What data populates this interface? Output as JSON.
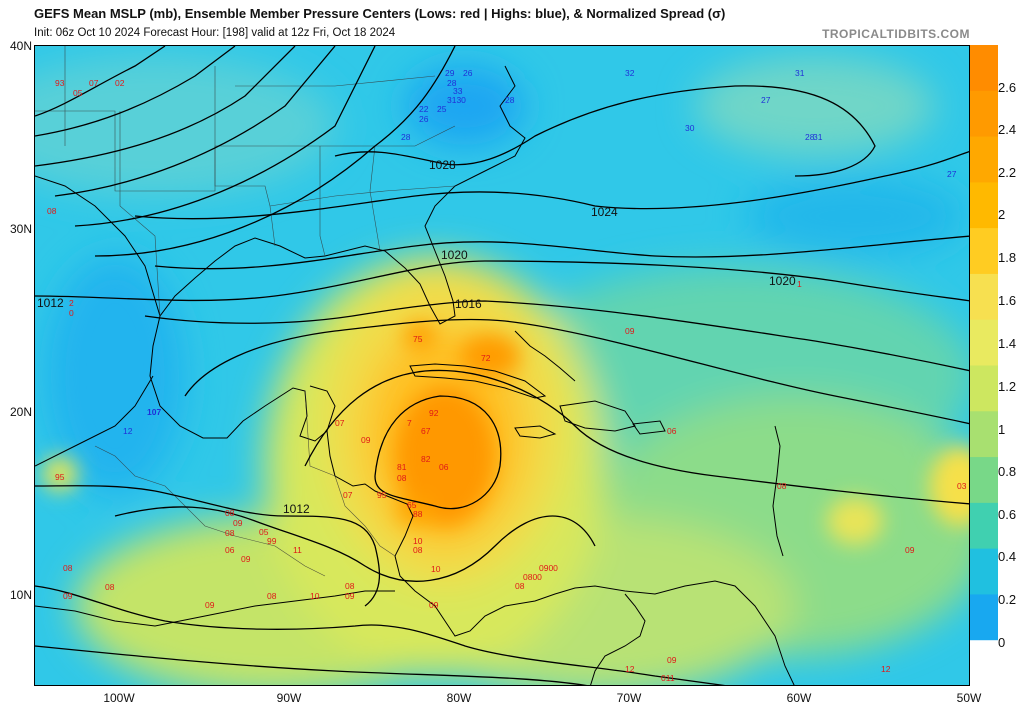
{
  "title": "GEFS Mean MSLP (mb), Ensemble Member Pressure Centers (Lows: red | Highs: blue), & Normalized Spread (σ)",
  "subtitle": "Init: 06z Oct 10 2024   Forecast Hour: [198]   valid at 12z Fri, Oct 18 2024",
  "brand": "TROPICALTIDBITS.COM",
  "lat_labels": [
    "40N",
    "30N",
    "20N",
    "10N"
  ],
  "lon_labels": [
    "100W",
    "90W",
    "80W",
    "70W",
    "60W",
    "50W"
  ],
  "isobar_labels": [
    "1028",
    "1024",
    "1020",
    "1020",
    "1016",
    "1012",
    "1012"
  ],
  "colorbar": {
    "labels": [
      "2.6",
      "2.4",
      "2.2",
      "2",
      "1.8",
      "1.6",
      "1.4",
      "1.2",
      "1",
      "0.8",
      "0.6",
      "0.4",
      "0.2",
      "0"
    ],
    "colors": [
      "#ff8c00",
      "#ff9a00",
      "#ffa800",
      "#ffb900",
      "#ffcc22",
      "#f7e050",
      "#e9ea60",
      "#cde760",
      "#a8e070",
      "#78d888",
      "#40d0b0",
      "#20c0e0",
      "#18a8f0",
      "#ffffff"
    ]
  },
  "lows": [
    "93",
    "07",
    "02",
    "05",
    "08",
    "2",
    "0",
    "75",
    "72",
    "07",
    "09",
    "92",
    "67",
    "7",
    "81",
    "82",
    "06",
    "08",
    "95",
    "07",
    "65",
    "88",
    "95",
    "08",
    "09",
    "08",
    "06",
    "05",
    "99",
    "09",
    "11",
    "08",
    "09",
    "08",
    "08",
    "10",
    "09",
    "09",
    "10",
    "08",
    "10",
    "09",
    "0900",
    "0800",
    "08",
    "08",
    "09",
    "06",
    "09",
    "03",
    "08",
    "12",
    "09",
    "1",
    "12",
    "011"
  ],
  "highs": [
    "29",
    "28",
    "33",
    "3130",
    "26",
    "28",
    "25",
    "22",
    "26",
    "28",
    "32",
    "31",
    "27",
    "30",
    "28",
    "31",
    "27",
    "107",
    "12"
  ]
}
